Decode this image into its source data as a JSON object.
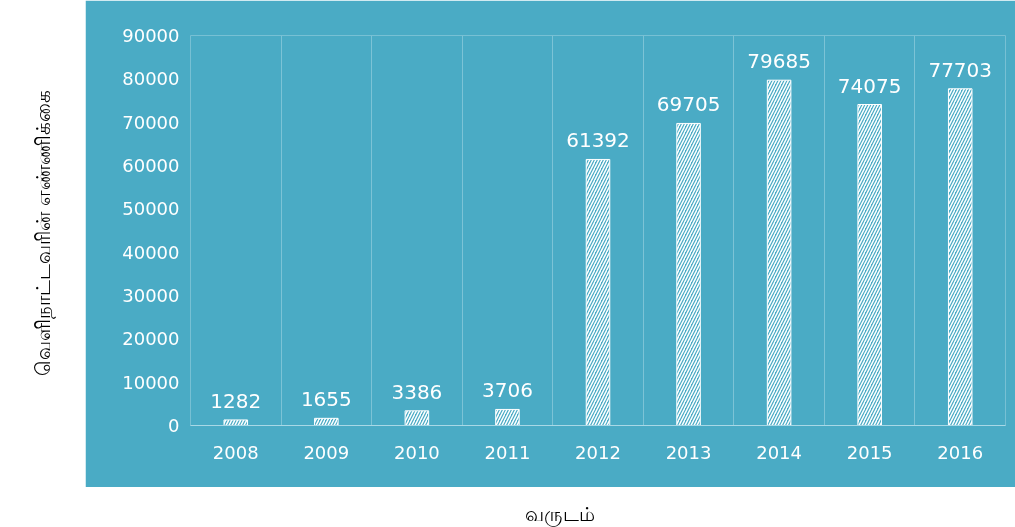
{
  "chart_data": {
    "type": "bar",
    "xlabel": "வருடம்",
    "ylabel": "வெளிநாட்டவரின் எண்ணிக்கை",
    "categories": [
      "2008",
      "2009",
      "2010",
      "2011",
      "2012",
      "2013",
      "2014",
      "2015",
      "2016"
    ],
    "values": [
      1282,
      1655,
      3386,
      3706,
      61392,
      69705,
      79685,
      74075,
      77703
    ],
    "color": "#ffffff",
    "ylim": [
      0,
      90000
    ],
    "yticks": [
      0,
      10000,
      20000,
      30000,
      40000,
      50000,
      60000,
      70000,
      80000,
      90000
    ],
    "grid": "x",
    "data_labels": true
  }
}
